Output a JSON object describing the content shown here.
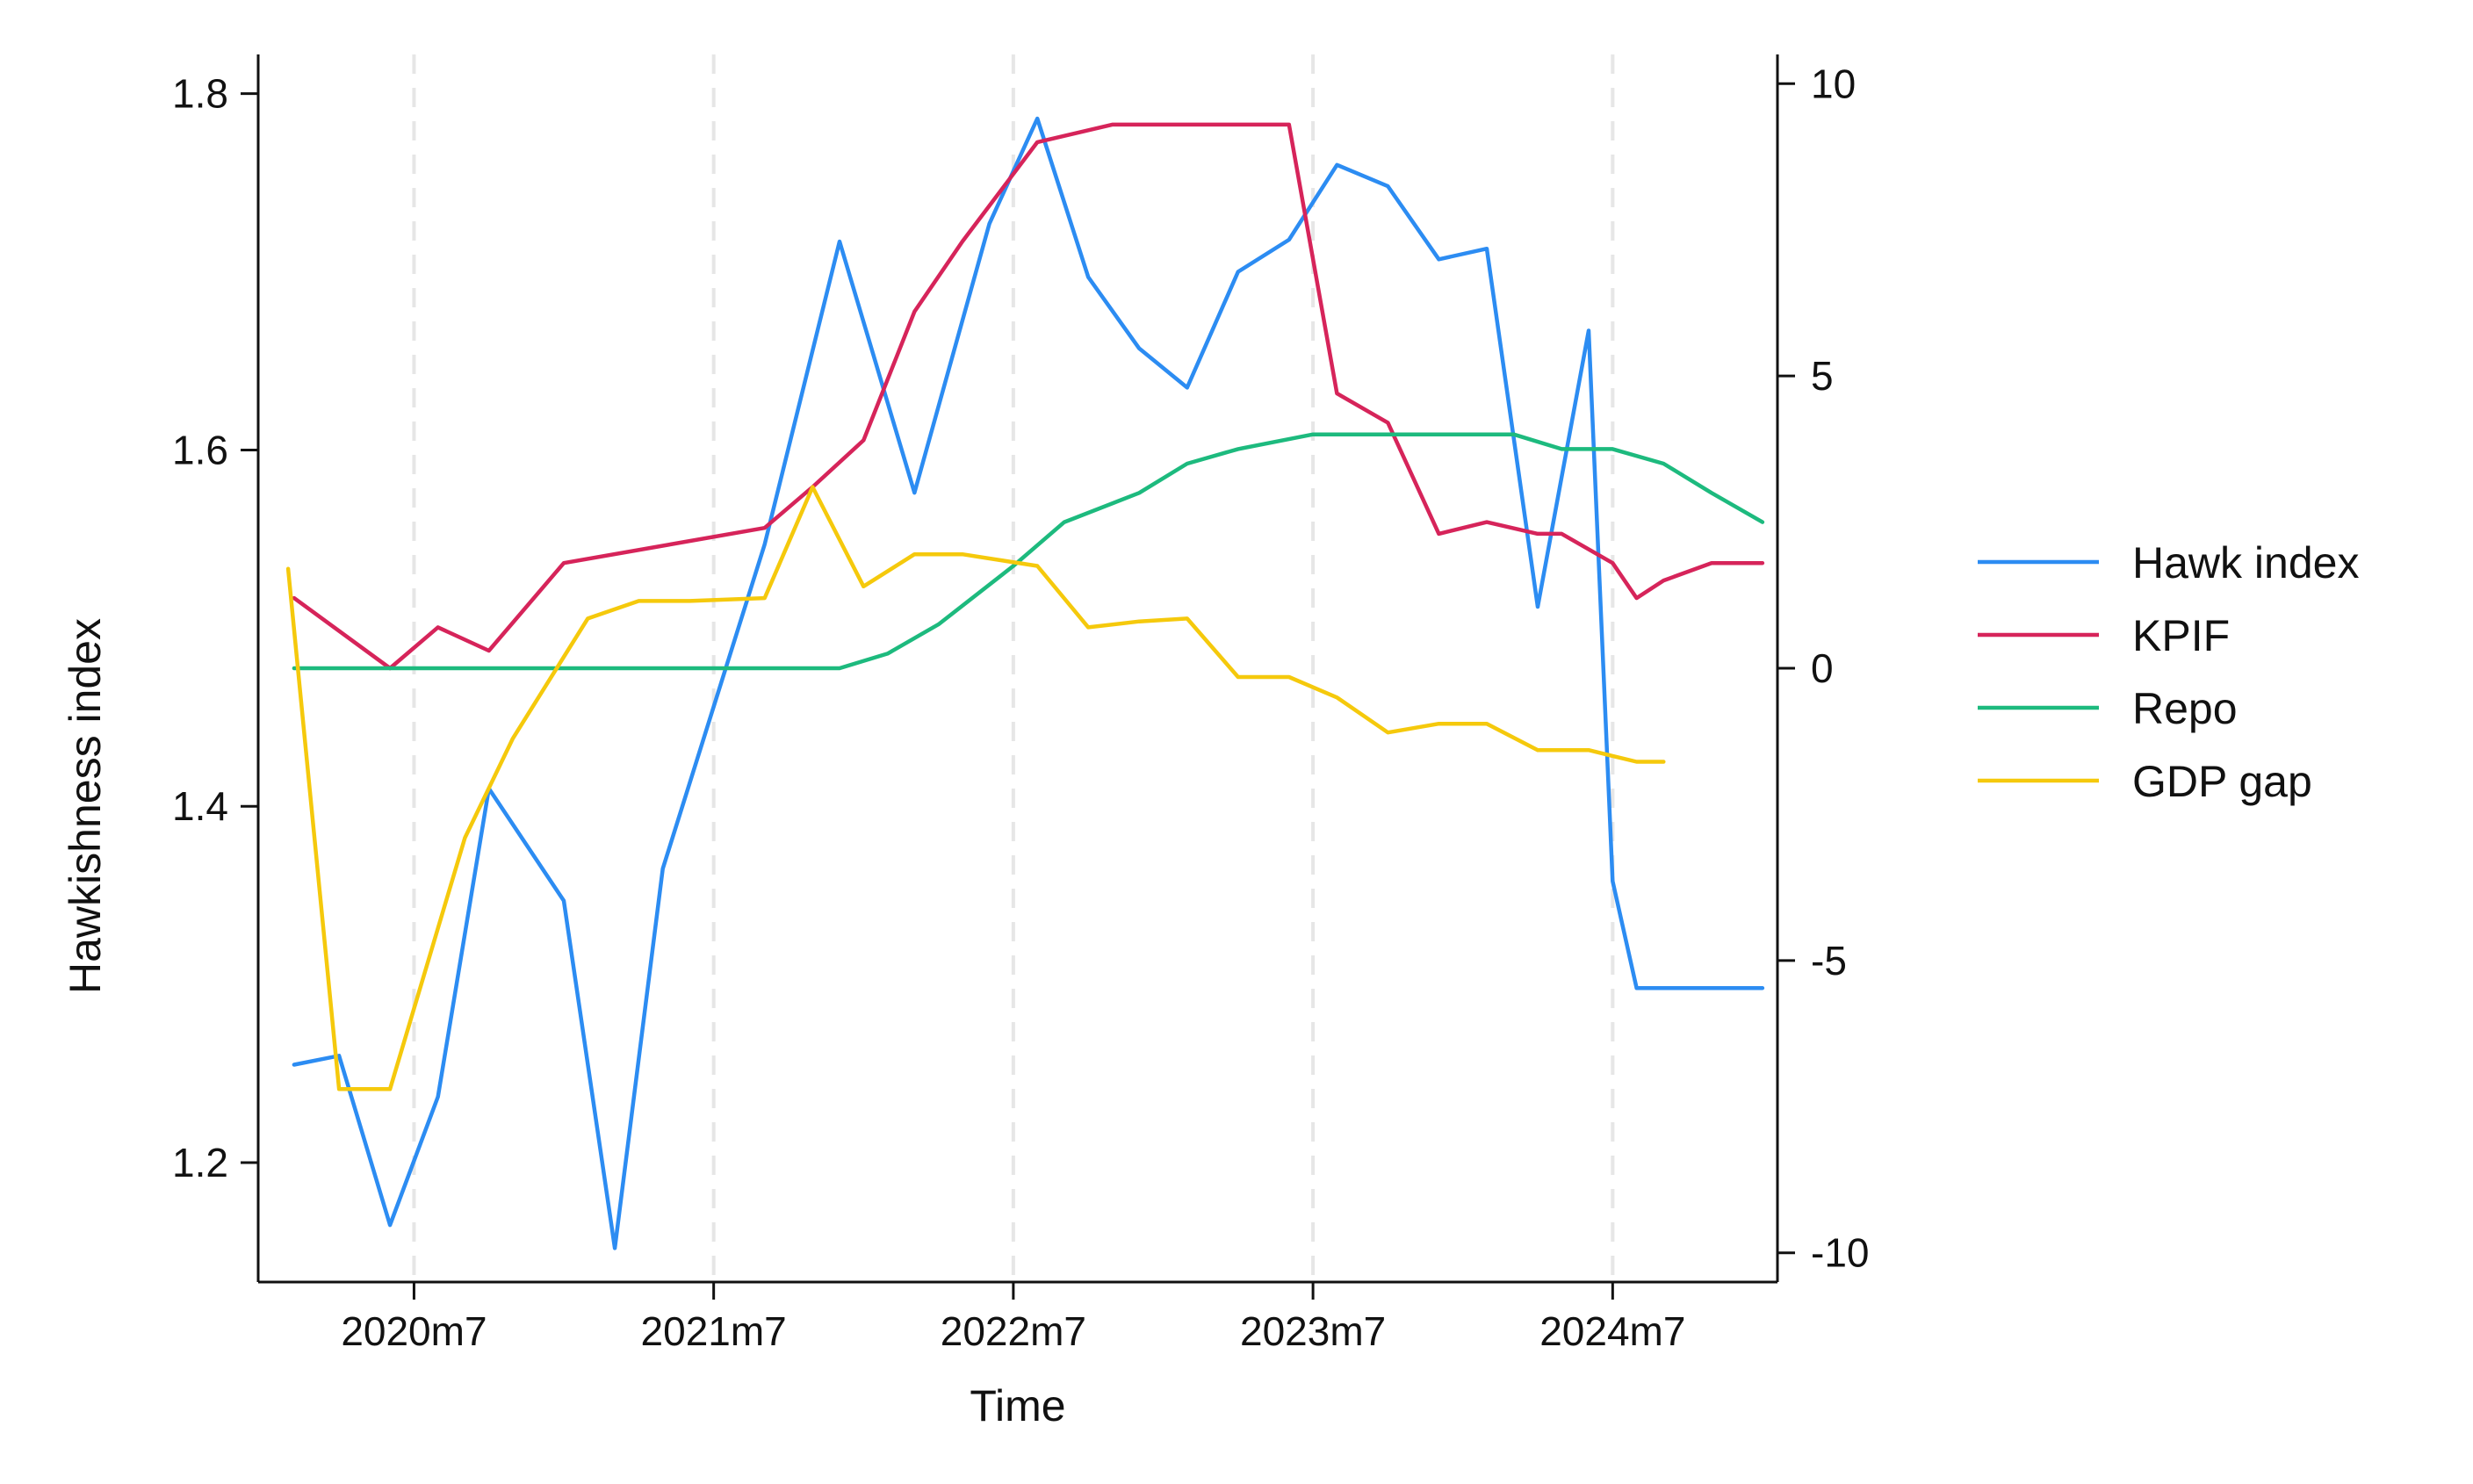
{
  "chart_data": {
    "type": "line",
    "xlabel": "Time",
    "ylabel": "Hawkishness index",
    "x_ticks": [
      "2020m7",
      "2021m7",
      "2022m7",
      "2023m7",
      "2024m7"
    ],
    "x_ticks_num": [
      2020.5,
      2021.5,
      2022.5,
      2023.5,
      2024.5
    ],
    "xlim": [
      2019.98,
      2025.05
    ],
    "y_left_lim": [
      1.133,
      1.822
    ],
    "y_left_ticks": [
      "1.2",
      "1.4",
      "1.6",
      "1.8"
    ],
    "y_left_ticks_num": [
      1.2,
      1.4,
      1.6,
      1.8
    ],
    "y_right_lim": [
      -10.5,
      10.5
    ],
    "y_right_ticks": [
      "10",
      "5",
      "0",
      "-5",
      "-10"
    ],
    "y_right_ticks_num": [
      10,
      5,
      0,
      -5,
      -10
    ],
    "grid": "vertical dashed at x ticks",
    "legend_position": "right",
    "series": [
      {
        "name": "Hawk index",
        "axis": "left",
        "color": "#2C8CF2",
        "x": [
          2020.1,
          2020.25,
          2020.42,
          2020.58,
          2020.75,
          2021.0,
          2021.17,
          2021.33,
          2021.67,
          2021.92,
          2022.17,
          2022.42,
          2022.58,
          2022.75,
          2022.92,
          2023.08,
          2023.25,
          2023.42,
          2023.58,
          2023.75,
          2023.92,
          2024.08,
          2024.25,
          2024.42,
          2024.5,
          2024.58,
          2024.67,
          2024.75,
          2024.92,
          2025.0
        ],
        "values": [
          1.255,
          1.26,
          1.165,
          1.237,
          1.41,
          1.347,
          1.152,
          1.365,
          1.547,
          1.717,
          1.576,
          1.727,
          1.786,
          1.697,
          1.657,
          1.635,
          1.7,
          1.718,
          1.76,
          1.748,
          1.707,
          1.713,
          1.512,
          1.667,
          1.358,
          1.298,
          1.298,
          1.298,
          1.298,
          1.298
        ]
      },
      {
        "name": "KPIF",
        "axis": "right",
        "color": "#D6245A",
        "x": [
          2020.1,
          2020.42,
          2020.58,
          2020.75,
          2021.0,
          2021.67,
          2021.83,
          2022.0,
          2022.17,
          2022.33,
          2022.58,
          2022.83,
          2023.42,
          2023.58,
          2023.75,
          2023.92,
          2024.08,
          2024.25,
          2024.33,
          2024.5,
          2024.58,
          2024.67,
          2024.83,
          2024.92,
          2025.0
        ],
        "values": [
          1.2,
          0.0,
          0.7,
          0.3,
          1.8,
          2.4,
          3.1,
          3.9,
          6.1,
          7.3,
          9.0,
          9.3,
          9.3,
          4.7,
          4.2,
          2.3,
          2.5,
          2.3,
          2.3,
          1.8,
          1.2,
          1.5,
          1.8,
          1.8,
          1.8
        ]
      },
      {
        "name": "Repo",
        "axis": "right",
        "color": "#1DBA7E",
        "x": [
          2020.1,
          2021.92,
          2022.08,
          2022.25,
          2022.5,
          2022.67,
          2022.92,
          2023.08,
          2023.25,
          2023.5,
          2023.75,
          2024.0,
          2024.17,
          2024.33,
          2024.5,
          2024.67,
          2024.83,
          2025.0
        ],
        "values": [
          0.0,
          0.0,
          0.25,
          0.75,
          1.75,
          2.5,
          3.0,
          3.5,
          3.75,
          4.0,
          4.0,
          4.0,
          4.0,
          3.75,
          3.75,
          3.5,
          3.0,
          2.5
        ]
      },
      {
        "name": "GDP gap",
        "axis": "right",
        "color": "#F5C90C",
        "x": [
          2020.08,
          2020.25,
          2020.42,
          2020.67,
          2020.83,
          2021.08,
          2021.25,
          2021.42,
          2021.67,
          2021.83,
          2022.0,
          2022.17,
          2022.33,
          2022.58,
          2022.75,
          2022.92,
          2023.08,
          2023.25,
          2023.42,
          2023.58,
          2023.75,
          2023.92,
          2024.08,
          2024.25,
          2024.42,
          2024.5,
          2024.58,
          2024.67
        ],
        "values": [
          1.7,
          -7.2,
          -7.2,
          -2.9,
          -1.2,
          0.85,
          1.15,
          1.15,
          1.2,
          3.1,
          1.4,
          1.95,
          1.95,
          1.75,
          0.7,
          0.8,
          0.85,
          -0.15,
          -0.15,
          -0.5,
          -1.1,
          -0.95,
          -0.95,
          -1.4,
          -1.4,
          -1.5,
          -1.6,
          -1.6
        ]
      }
    ]
  }
}
